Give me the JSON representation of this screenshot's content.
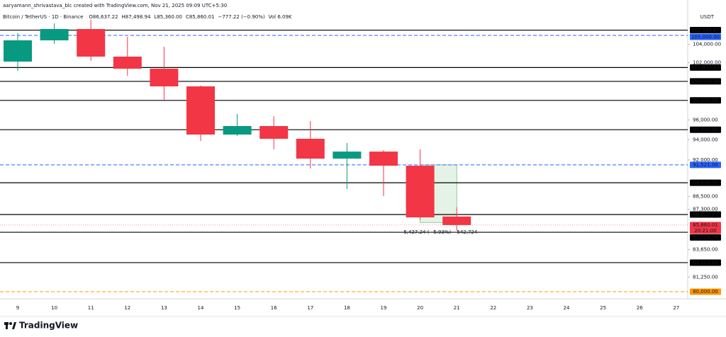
{
  "header": {
    "credit": "aaryamann_shrivastava_blc created with TradingView.com, Nov 21, 2025 09:09 UTC+5:30",
    "symbol": "Bitcoin / TetherUS · 1D · Binance",
    "quote": [
      "O86,637.22",
      "H87,498.94",
      "L85,360.00",
      "C85,860.01",
      "−777.22 (−0.90%)",
      "Vol 6.09K"
    ]
  },
  "footer": {
    "brand": "TradingView"
  },
  "chart_data": {
    "type": "candlestick",
    "y_unit": "USDT",
    "categories": [
      "9",
      "10",
      "11",
      "12",
      "13",
      "14",
      "15",
      "16",
      "17",
      "18",
      "19",
      "20",
      "21",
      "22",
      "23",
      "24",
      "25",
      "26",
      "27"
    ],
    "open": [
      102120,
      104450,
      105710,
      102660,
      101350,
      99470,
      94510,
      95370,
      94090,
      92130,
      92820,
      91440,
      86637.22,
      null,
      null,
      null,
      null,
      null,
      null
    ],
    "high": [
      105230,
      106350,
      106750,
      104830,
      103740,
      99560,
      96600,
      96370,
      95870,
      93660,
      92970,
      93030,
      87498.94,
      null,
      null,
      null,
      null,
      null,
      null
    ],
    "low": [
      101130,
      104050,
      102200,
      100590,
      97910,
      93870,
      94370,
      93030,
      91170,
      89200,
      88540,
      86370,
      85360,
      null,
      null,
      null,
      null,
      null,
      null
    ],
    "close": [
      104450,
      105710,
      102660,
      101350,
      99470,
      94510,
      95370,
      94090,
      92130,
      92820,
      91440,
      86560,
      85860.01,
      null,
      null,
      null,
      null,
      null,
      null
    ],
    "up_color": "#089981",
    "down_color": "#f23645",
    "ylim": [
      79400,
      108200
    ],
    "log_scale": true,
    "yticks": [
      {
        "value": 104000,
        "label": "104,000.00"
      },
      {
        "value": 102000,
        "label": "102,000.00"
      },
      {
        "value": 96000,
        "label": "96,000.00"
      },
      {
        "value": 94000,
        "label": "94,000.00"
      },
      {
        "value": 92000,
        "label": "92,000.00"
      },
      {
        "value": 88500,
        "label": "88,500.00"
      },
      {
        "value": 87300,
        "label": "87,300.00"
      },
      {
        "value": 83650,
        "label": "83,650.00"
      },
      {
        "value": 81250,
        "label": "81,250.00"
      }
    ],
    "levels": [
      {
        "value": 105585.67,
        "label": "105,585.67",
        "style": "solid",
        "color": "#000000"
      },
      {
        "value": 105000,
        "label": "105,000.00",
        "style": "dashed",
        "color": "#2962ff"
      },
      {
        "value": 101477.83,
        "label": "101,477.83",
        "style": "solid",
        "color": "#000000"
      },
      {
        "value": 100000,
        "label": "100,000.00",
        "style": "solid",
        "color": "#000000"
      },
      {
        "value": 98000,
        "label": "98,000.00",
        "style": "solid",
        "color": "#000000"
      },
      {
        "value": 95000,
        "label": "95,000.00",
        "style": "solid",
        "color": "#000000"
      },
      {
        "value": 91521,
        "label": "91,521.00",
        "style": "dashed",
        "color": "#2962ff"
      },
      {
        "value": 89800,
        "label": "89,800.00",
        "style": "solid",
        "color": "#000000"
      },
      {
        "value": 86822.07,
        "label": "86,822.07",
        "style": "solid",
        "color": "#000000"
      },
      {
        "value": 85204.54,
        "label": "85,204.54",
        "style": "solid",
        "color": "#000000"
      },
      {
        "value": 82503.45,
        "label": "82,503.45",
        "style": "solid",
        "color": "#000000"
      },
      {
        "value": 80000,
        "label": "80,000.00",
        "style": "dashed",
        "color": "#ff9800"
      }
    ],
    "current_price": {
      "value": 85860.01,
      "label": "85,860.01",
      "countdown": "20:21:00",
      "color": "#f23645"
    },
    "measure": {
      "label": "−5,427.24 (−5.93%) −542,724",
      "from_category": "20",
      "to_category": "21",
      "top": 91521,
      "bottom": 86094,
      "color": "#4caf50"
    }
  }
}
